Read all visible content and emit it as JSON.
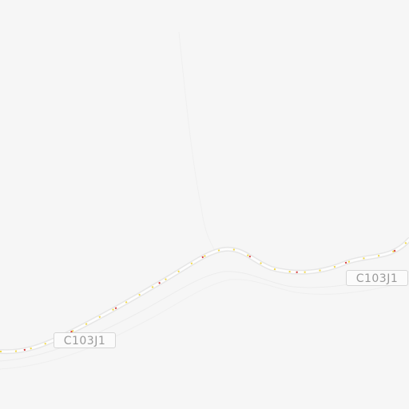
{
  "map": {
    "road_labels": [
      {
        "text": "C103J1"
      },
      {
        "text": "C103J1"
      }
    ],
    "colors": {
      "background": "#f6f6f6",
      "road_casing": "#e6e6e6",
      "road_fill": "#fdfdfd",
      "traffic_dash_yellow": "#f0d84a",
      "traffic_dash_red": "#d43a3a",
      "contour": "#ececec"
    }
  }
}
